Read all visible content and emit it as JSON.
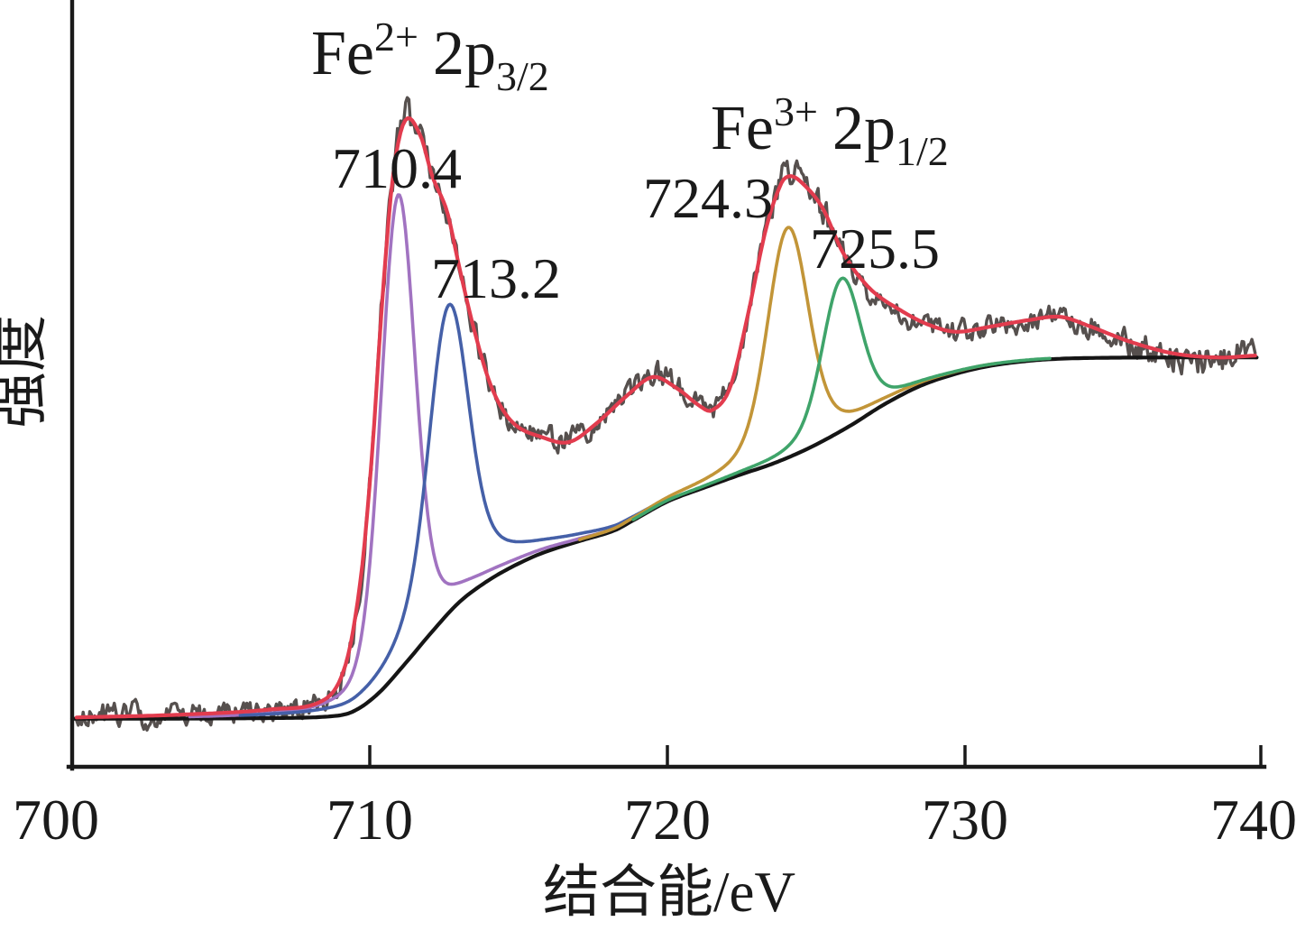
{
  "figure": {
    "kind": "XPS Fe 2p spectrum with peak fitting",
    "background_color": "#ffffff"
  },
  "chart_data": {
    "type": "line",
    "title": "",
    "xlabel": "结合能/eV",
    "ylabel": "强度",
    "xlim": [
      700,
      740
    ],
    "xticks": [
      700,
      710,
      720,
      730,
      740
    ],
    "grid": false,
    "legend_position": "none",
    "y_axis_units": "arbitrary intensity (0-100 relative scale)",
    "annotations": [
      {
        "id": "fe2-assignment",
        "parts": {
          "pre": "Fe",
          "sup": "2+",
          "mid": "2p",
          "sub": "3/2"
        }
      },
      {
        "id": "peak-label-1",
        "text": "710.4"
      },
      {
        "id": "peak-label-2",
        "text": "713.2"
      },
      {
        "id": "fe3-assignment",
        "parts": {
          "pre": "Fe",
          "sup": "3+",
          "mid": "2p",
          "sub": "1/2"
        }
      },
      {
        "id": "peak-label-3",
        "text": "724.3"
      },
      {
        "id": "peak-label-4",
        "text": "725.5"
      }
    ],
    "series": [
      {
        "name": "raw",
        "role": "raw",
        "color": "#56504e",
        "noise": {
          "seed": 11,
          "base_amplitude": 1.55,
          "persistence": 0.45,
          "drift_gain": 0.32,
          "drift_persistence": 0.9,
          "step_ev": 0.055,
          "start_ev": 700.15,
          "end_ev": 739.8
        }
      },
      {
        "name": "envelope",
        "role": "envelope",
        "color": "#e23c4e",
        "keypoints": [
          [
            700.15,
            7.3
          ],
          [
            703.6,
            7.7
          ],
          [
            706.7,
            8.5
          ],
          [
            708.5,
            10.0
          ],
          [
            709.2,
            15.3
          ],
          [
            709.7,
            28.0
          ],
          [
            710.06,
            45.3
          ],
          [
            710.45,
            70.7
          ],
          [
            710.8,
            88.0
          ],
          [
            711.2,
            95.6
          ],
          [
            711.7,
            93.3
          ],
          [
            712.1,
            87.3
          ],
          [
            712.6,
            82.0
          ],
          [
            713.0,
            74.0
          ],
          [
            713.5,
            64.7
          ],
          [
            714.1,
            56.0
          ],
          [
            714.8,
            50.9
          ],
          [
            715.8,
            48.7
          ],
          [
            716.7,
            48.0
          ],
          [
            717.6,
            50.7
          ],
          [
            718.6,
            54.7
          ],
          [
            719.5,
            57.6
          ],
          [
            720.3,
            56.0
          ],
          [
            721.1,
            53.3
          ],
          [
            721.5,
            52.7
          ],
          [
            722.1,
            56.0
          ],
          [
            722.7,
            66.7
          ],
          [
            723.3,
            79.3
          ],
          [
            723.8,
            86.0
          ],
          [
            724.1,
            87.3
          ],
          [
            724.5,
            86.4
          ],
          [
            725.2,
            82.7
          ],
          [
            725.9,
            76.0
          ],
          [
            726.8,
            70.7
          ],
          [
            727.9,
            67.3
          ],
          [
            728.8,
            65.3
          ],
          [
            729.7,
            64.3
          ],
          [
            730.9,
            65.1
          ],
          [
            732.1,
            66.0
          ],
          [
            733.2,
            66.5
          ],
          [
            734.2,
            65.1
          ],
          [
            735.5,
            62.9
          ],
          [
            737.0,
            61.1
          ],
          [
            738.5,
            60.5
          ],
          [
            739.8,
            60.8
          ]
        ]
      },
      {
        "name": "background",
        "role": "background",
        "color": "#151515",
        "keypoints": [
          [
            700.0,
            7.1
          ],
          [
            706.7,
            7.2
          ],
          [
            708.8,
            7.5
          ],
          [
            709.5,
            8.3
          ],
          [
            710.3,
            10.9
          ],
          [
            711.2,
            15.3
          ],
          [
            712.1,
            20.0
          ],
          [
            713.0,
            24.3
          ],
          [
            713.9,
            27.3
          ],
          [
            714.8,
            29.6
          ],
          [
            715.8,
            31.6
          ],
          [
            717.0,
            33.3
          ],
          [
            718.2,
            34.9
          ],
          [
            718.8,
            36.3
          ],
          [
            720.0,
            39.2
          ],
          [
            721.2,
            41.2
          ],
          [
            722.4,
            43.1
          ],
          [
            723.6,
            44.9
          ],
          [
            724.8,
            47.2
          ],
          [
            726.1,
            50.3
          ],
          [
            727.3,
            53.6
          ],
          [
            728.5,
            56.3
          ],
          [
            729.7,
            58.1
          ],
          [
            730.9,
            59.3
          ],
          [
            732.4,
            60.1
          ],
          [
            733.9,
            60.4
          ],
          [
            737.0,
            60.5
          ],
          [
            739.8,
            60.5
          ]
        ]
      },
      {
        "name": "710.4",
        "role": "component",
        "assignment": "Fe2+ 2p3/2",
        "labeled_center_ev": 710.4,
        "drawn_center_ev": 710.95,
        "amplitude": 70.5,
        "sigma_ev": 0.55,
        "lorentz_fraction": 0.25,
        "lorentz_width_ev": 0.9,
        "color": "#a173c1"
      },
      {
        "name": "713.2",
        "role": "component",
        "assignment": "Fe2+ 2p3/2",
        "labeled_center_ev": 713.2,
        "drawn_center_ev": 712.65,
        "amplitude": 45.5,
        "sigma_ev": 0.62,
        "lorentz_fraction": 0.3,
        "lorentz_width_ev": 1.3,
        "color": "#4560a8"
      },
      {
        "name": "724.3",
        "role": "component",
        "assignment": "Fe3+ 2p1/2",
        "labeled_center_ev": 724.3,
        "drawn_center_ev": 724.05,
        "amplitude": 34.0,
        "sigma_ev": 0.66,
        "lorentz_fraction": 0.27,
        "lorentz_width_ev": 1.1,
        "color": "#c29538"
      },
      {
        "name": "725.5",
        "role": "component",
        "assignment": "Fe3+ 2p1/2",
        "labeled_center_ev": 725.5,
        "drawn_center_ev": 725.85,
        "amplitude": 22.5,
        "sigma_ev": 0.62,
        "lorentz_fraction": 0.27,
        "lorentz_width_ev": 1.0,
        "color": "#3fa46a"
      }
    ]
  }
}
